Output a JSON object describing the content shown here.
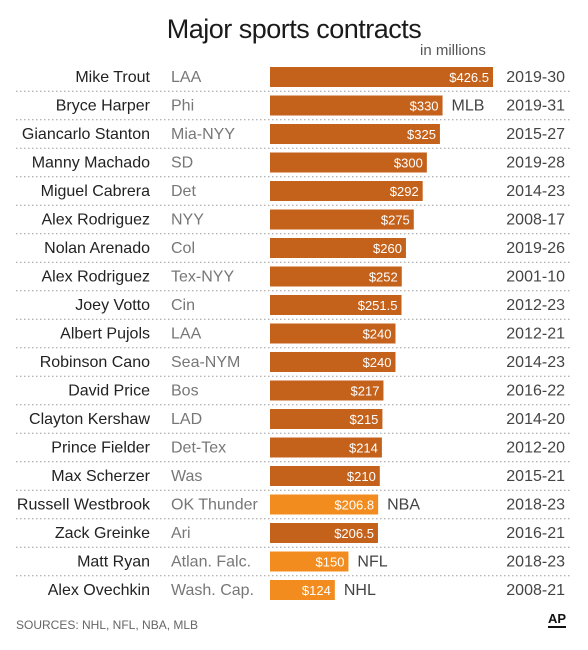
{
  "title": "Major sports contracts",
  "unit_label": "in millions",
  "source": "SOURCES: NHL, NFL, NBA, MLB",
  "logo_text": "AP",
  "colors": {
    "mlb": "#c4621c",
    "other": "#f28c1e",
    "name": "#222222",
    "team": "#777777",
    "years": "#444444",
    "divider": "#9a9a9a"
  },
  "chart_data": {
    "type": "bar",
    "orientation": "horizontal",
    "categories": [
      "Mike Trout",
      "Bryce Harper",
      "Giancarlo Stanton",
      "Manny Machado",
      "Miguel Cabrera",
      "Alex Rodriguez",
      "Nolan Arenado",
      "Alex Rodriguez",
      "Joey Votto",
      "Albert Pujols",
      "Robinson Cano",
      "David Price",
      "Clayton Kershaw",
      "Prince Fielder",
      "Max Scherzer",
      "Russell Westbrook",
      "Zack Greinke",
      "Matt Ryan",
      "Alex Ovechkin"
    ],
    "teams": [
      "LAA",
      "Phi",
      "Mia-NYY",
      "SD",
      "Det",
      "NYY",
      "Col",
      "Tex-NYY",
      "Cin",
      "LAA",
      "Sea-NYM",
      "Bos",
      "LAD",
      "Det-Tex",
      "Was",
      "OK Thunder",
      "Ari",
      "Atlan. Falc.",
      "Wash. Cap."
    ],
    "values": [
      426.5,
      330,
      325,
      300,
      292,
      275,
      260,
      252,
      251.5,
      240,
      240,
      217,
      215,
      214,
      210,
      206.8,
      206.5,
      150,
      124
    ],
    "value_labels": [
      "$426.5",
      "$330",
      "$325",
      "$300",
      "$292",
      "$275",
      "$260",
      "$252",
      "$251.5",
      "$240",
      "$240",
      "$217",
      "$215",
      "$214",
      "$210",
      "$206.8",
      "$206.5",
      "$150",
      "$124"
    ],
    "leagues": [
      "MLB",
      "MLB",
      "MLB",
      "MLB",
      "MLB",
      "MLB",
      "MLB",
      "MLB",
      "MLB",
      "MLB",
      "MLB",
      "MLB",
      "MLB",
      "MLB",
      "MLB",
      "NBA",
      "MLB",
      "NFL",
      "NHL"
    ],
    "league_labels": [
      "",
      "MLB",
      "",
      "",
      "",
      "",
      "",
      "",
      "",
      "",
      "",
      "",
      "",
      "",
      "",
      "NBA",
      "",
      "NFL",
      "NHL"
    ],
    "years": [
      "2019-30",
      "2019-31",
      "2015-27",
      "2019-28",
      "2014-23",
      "2008-17",
      "2019-26",
      "2001-10",
      "2012-23",
      "2012-21",
      "2014-23",
      "2016-22",
      "2014-20",
      "2012-20",
      "2015-21",
      "2018-23",
      "2016-21",
      "2018-23",
      "2008-21"
    ],
    "xlim": [
      0,
      426.5
    ],
    "grid": false
  }
}
